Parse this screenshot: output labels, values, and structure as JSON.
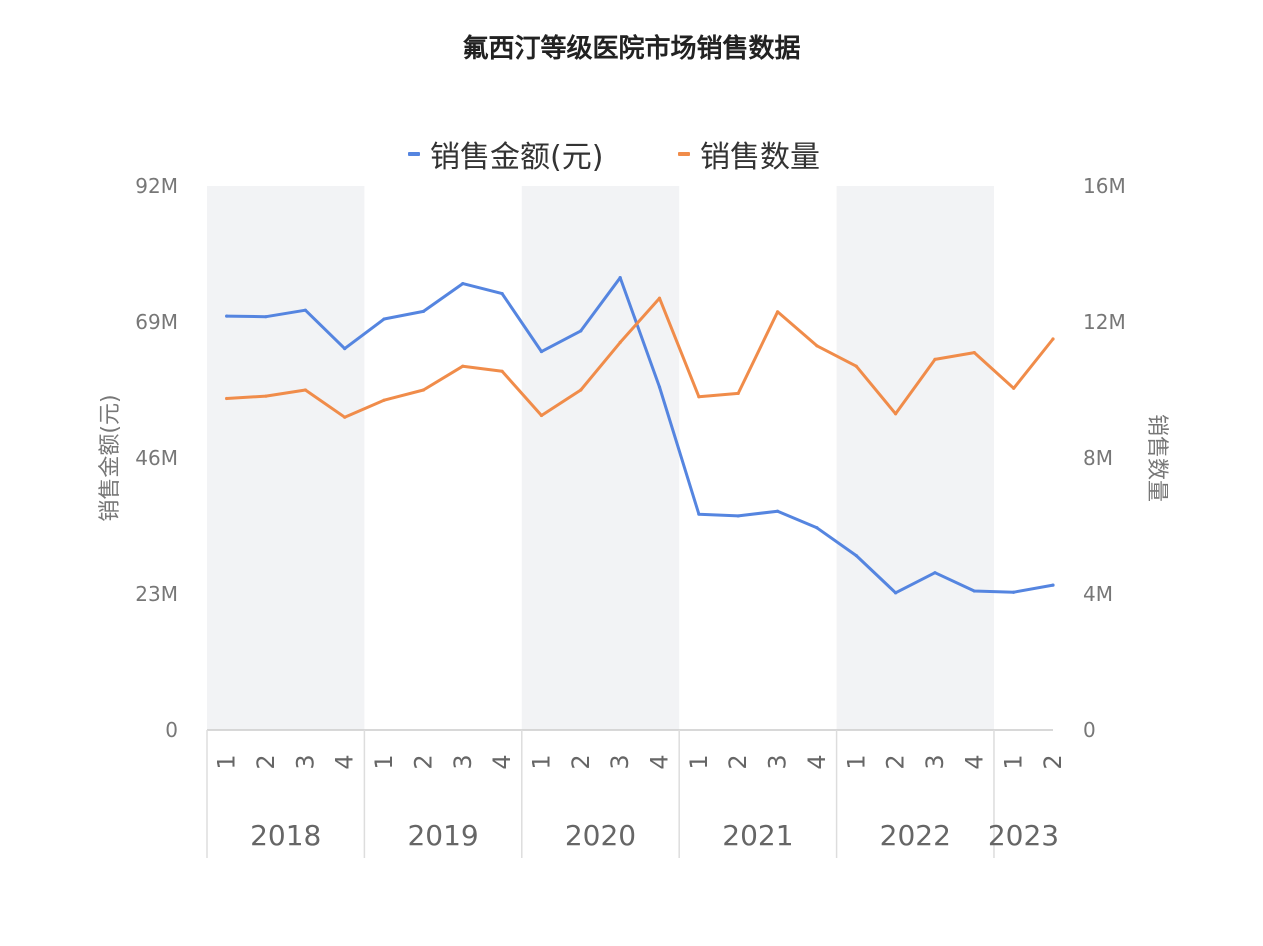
{
  "title": "氟西汀等级医院市场销售数据",
  "legend": {
    "amount": "销售金额(元)",
    "quantity": "销售数量"
  },
  "colors": {
    "amount": "#5585e0",
    "quantity": "#f08c4a",
    "band": "#f2f3f5",
    "axis": "#cccccc"
  },
  "chart_data": {
    "type": "line",
    "title": "氟西汀等级医院市场销售数据",
    "x": [
      {
        "year": "2018",
        "quarter": "1"
      },
      {
        "year": "2018",
        "quarter": "2"
      },
      {
        "year": "2018",
        "quarter": "3"
      },
      {
        "year": "2018",
        "quarter": "4"
      },
      {
        "year": "2019",
        "quarter": "1"
      },
      {
        "year": "2019",
        "quarter": "2"
      },
      {
        "year": "2019",
        "quarter": "3"
      },
      {
        "year": "2019",
        "quarter": "4"
      },
      {
        "year": "2020",
        "quarter": "1"
      },
      {
        "year": "2020",
        "quarter": "2"
      },
      {
        "year": "2020",
        "quarter": "3"
      },
      {
        "year": "2020",
        "quarter": "4"
      },
      {
        "year": "2021",
        "quarter": "1"
      },
      {
        "year": "2021",
        "quarter": "2"
      },
      {
        "year": "2021",
        "quarter": "3"
      },
      {
        "year": "2021",
        "quarter": "4"
      },
      {
        "year": "2022",
        "quarter": "1"
      },
      {
        "year": "2022",
        "quarter": "2"
      },
      {
        "year": "2022",
        "quarter": "3"
      },
      {
        "year": "2022",
        "quarter": "4"
      },
      {
        "year": "2023",
        "quarter": "1"
      },
      {
        "year": "2023",
        "quarter": "2"
      }
    ],
    "years": [
      "2018",
      "2019",
      "2020",
      "2021",
      "2022",
      "2023"
    ],
    "series": [
      {
        "name": "销售金额(元)",
        "axis": "left",
        "values": [
          70.0,
          69.9,
          71.0,
          64.5,
          69.5,
          70.8,
          75.5,
          73.8,
          64.0,
          67.5,
          76.5,
          58.0,
          36.5,
          36.2,
          37.0,
          34.2,
          29.5,
          23.2,
          26.6,
          23.5,
          23.3,
          24.5
        ]
      },
      {
        "name": "销售数量",
        "axis": "right",
        "values": [
          9.75,
          9.82,
          10.0,
          9.2,
          9.7,
          10.0,
          10.7,
          10.55,
          9.25,
          10.0,
          11.4,
          12.7,
          9.8,
          9.9,
          12.3,
          11.3,
          10.7,
          9.3,
          10.9,
          11.1,
          10.05,
          11.5
        ]
      }
    ],
    "y_left": {
      "label": "销售金额(元)",
      "ylim": [
        0,
        92
      ],
      "ticks": [
        "0",
        "23M",
        "46M",
        "69M",
        "92M"
      ]
    },
    "y_right": {
      "label": "销售数量",
      "ylim": [
        0,
        16
      ],
      "ticks": [
        "0",
        "4M",
        "8M",
        "12M",
        "16M"
      ]
    },
    "shaded_years": [
      "2018",
      "2020",
      "2022"
    ],
    "legend_position": "top"
  }
}
